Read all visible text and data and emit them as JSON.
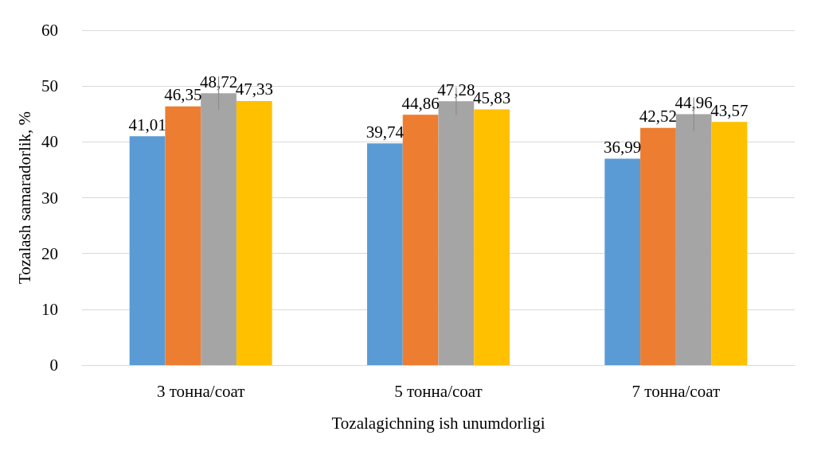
{
  "chart_data": {
    "type": "bar",
    "xlabel": "Tozalagichning ish unumdorligi",
    "ylabel": "Tozalash samaradorlik, %",
    "categories": [
      "3 тонна/соат",
      "5 тонна/соат",
      "7 тонна/соат"
    ],
    "series": [
      {
        "color": "#5b9bd5",
        "values": [
          41.01,
          39.74,
          36.99
        ],
        "value_labels": [
          "41,01",
          "39,74",
          "36,99"
        ]
      },
      {
        "color": "#ed7d31",
        "values": [
          46.35,
          44.86,
          42.52
        ],
        "value_labels": [
          "46,35",
          "44,86",
          "42,52"
        ]
      },
      {
        "color": "#a5a5a5",
        "values": [
          48.72,
          47.28,
          44.96
        ],
        "value_labels": [
          "48,72",
          "47,28",
          "44,96"
        ],
        "errors": [
          3,
          2.5,
          3
        ]
      },
      {
        "color": "#ffc000",
        "values": [
          47.33,
          45.83,
          43.57
        ],
        "value_labels": [
          "47,33",
          "45,83",
          "43,57"
        ]
      }
    ],
    "ylim": [
      0,
      60
    ],
    "yticks": [
      0,
      10,
      20,
      30,
      40,
      50,
      60
    ],
    "grid": "y"
  }
}
